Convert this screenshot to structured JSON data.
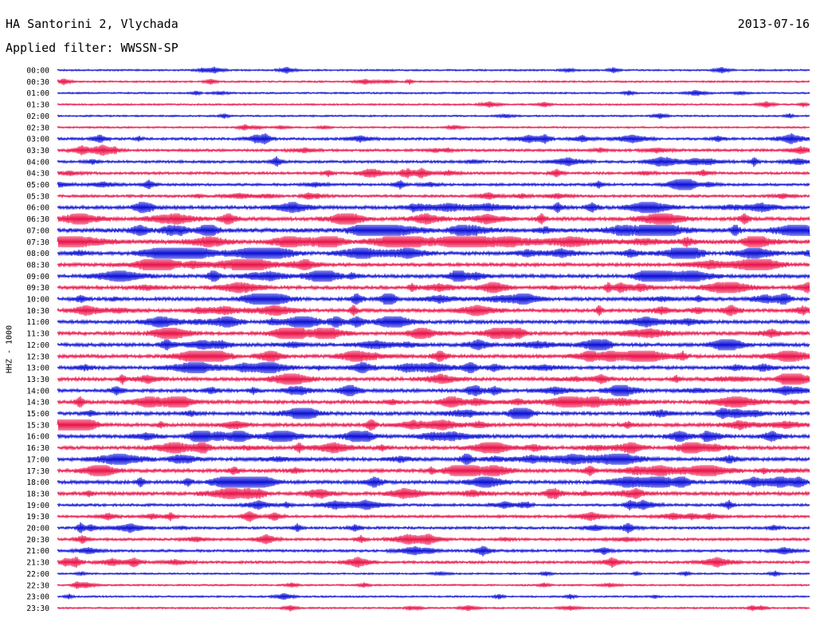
{
  "header": {
    "station": "HA Santorini 2, Vlychada",
    "date": "2013-07-16",
    "filter": "Applied filter: WWSSN-SP"
  },
  "channel_label": "HHZ - 1000",
  "colors": {
    "trace_a": "#0b0fd6",
    "trace_b": "#ea1349",
    "text": "#000000",
    "background": "#ffffff"
  },
  "chart_data": {
    "type": "line",
    "description_type": "helicorder",
    "rows": [
      {
        "time": "00:00",
        "activity": 1
      },
      {
        "time": "00:30",
        "activity": 1
      },
      {
        "time": "01:00",
        "activity": 1
      },
      {
        "time": "01:30",
        "activity": 1
      },
      {
        "time": "02:00",
        "activity": 1
      },
      {
        "time": "02:30",
        "activity": 1
      },
      {
        "time": "03:00",
        "activity": 2
      },
      {
        "time": "03:30",
        "activity": 2
      },
      {
        "time": "04:00",
        "activity": 2
      },
      {
        "time": "04:30",
        "activity": 2
      },
      {
        "time": "05:00",
        "activity": 2
      },
      {
        "time": "05:30",
        "activity": 2
      },
      {
        "time": "06:00",
        "activity": 3
      },
      {
        "time": "06:30",
        "activity": 3
      },
      {
        "time": "07:00",
        "activity": 4
      },
      {
        "time": "07:30",
        "activity": 4
      },
      {
        "time": "08:00",
        "activity": 3
      },
      {
        "time": "08:30",
        "activity": 3
      },
      {
        "time": "09:00",
        "activity": 3
      },
      {
        "time": "09:30",
        "activity": 3
      },
      {
        "time": "10:00",
        "activity": 3
      },
      {
        "time": "10:30",
        "activity": 3
      },
      {
        "time": "11:00",
        "activity": 3
      },
      {
        "time": "11:30",
        "activity": 3
      },
      {
        "time": "12:00",
        "activity": 3
      },
      {
        "time": "12:30",
        "activity": 3
      },
      {
        "time": "13:00",
        "activity": 3
      },
      {
        "time": "13:30",
        "activity": 3
      },
      {
        "time": "14:00",
        "activity": 3
      },
      {
        "time": "14:30",
        "activity": 3
      },
      {
        "time": "15:00",
        "activity": 3
      },
      {
        "time": "15:30",
        "activity": 3
      },
      {
        "time": "16:00",
        "activity": 3
      },
      {
        "time": "16:30",
        "activity": 3
      },
      {
        "time": "17:00",
        "activity": 3
      },
      {
        "time": "17:30",
        "activity": 3
      },
      {
        "time": "18:00",
        "activity": 3
      },
      {
        "time": "18:30",
        "activity": 3
      },
      {
        "time": "19:00",
        "activity": 2
      },
      {
        "time": "19:30",
        "activity": 2
      },
      {
        "time": "20:00",
        "activity": 2
      },
      {
        "time": "20:30",
        "activity": 2
      },
      {
        "time": "21:00",
        "activity": 2
      },
      {
        "time": "21:30",
        "activity": 2
      },
      {
        "time": "22:00",
        "activity": 1
      },
      {
        "time": "22:30",
        "activity": 1
      },
      {
        "time": "23:00",
        "activity": 1
      },
      {
        "time": "23:30",
        "activity": 1
      }
    ]
  }
}
